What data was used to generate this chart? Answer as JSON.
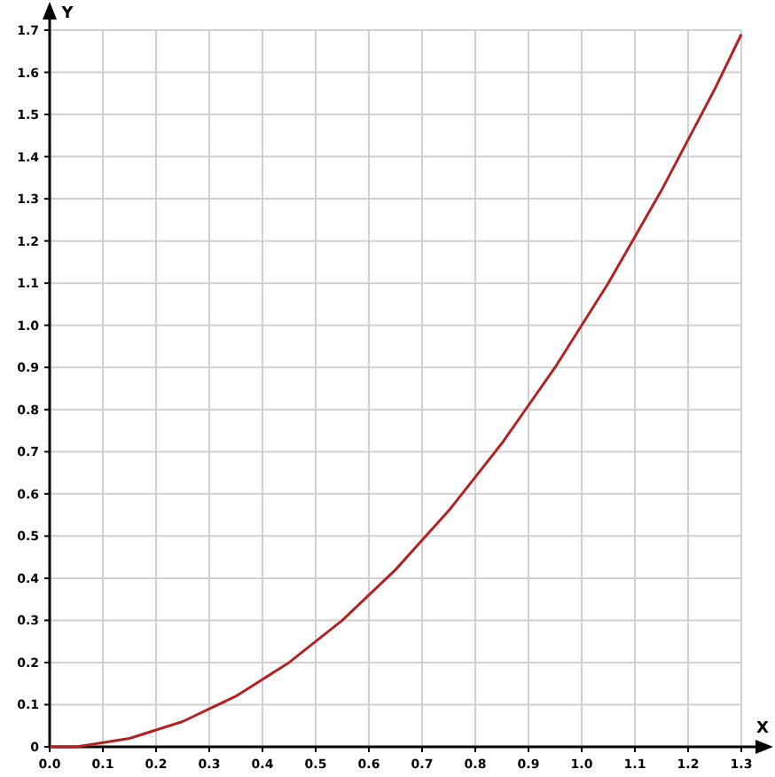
{
  "chart_data": {
    "type": "line",
    "xlabel": "X",
    "ylabel": "Y",
    "x": [
      0,
      0.05,
      0.1,
      0.15,
      0.2,
      0.25,
      0.3,
      0.35,
      0.4,
      0.45,
      0.5,
      0.55,
      0.6,
      0.65,
      0.7,
      0.75,
      0.8,
      0.85,
      0.9,
      0.95,
      1.0,
      1.05,
      1.1,
      1.15,
      1.2,
      1.25,
      1.3
    ],
    "series": [
      {
        "color": "#b22222",
        "values": [
          0,
          0,
          0.01,
          0.02,
          0.04,
          0.06,
          0.09,
          0.12,
          0.16,
          0.2,
          0.25,
          0.3,
          0.36,
          0.42,
          0.49,
          0.56,
          0.64,
          0.72,
          0.81,
          0.9,
          1.0,
          1.1,
          1.21,
          1.32,
          1.44,
          1.56,
          1.69
        ]
      }
    ],
    "xlim": [
      0,
      1.3
    ],
    "ylim": [
      0,
      1.7
    ],
    "xticks": [
      {
        "value": 0,
        "label": "0.0"
      },
      0.1,
      0.2,
      0.3,
      0.4,
      0.5,
      0.6,
      0.7,
      0.8,
      0.9,
      {
        "value": 1,
        "label": "1.0"
      },
      1.1,
      1.2,
      1.3
    ],
    "yticks": [
      0,
      0.1,
      0.2,
      0.3,
      0.4,
      0.5,
      0.6,
      0.7,
      0.8,
      0.9,
      {
        "value": 1,
        "label": "1.0"
      },
      1.1,
      1.2,
      1.3,
      1.4,
      1.5,
      1.6,
      1.7
    ],
    "grid": true,
    "marker": "none",
    "line_style": "solid"
  }
}
